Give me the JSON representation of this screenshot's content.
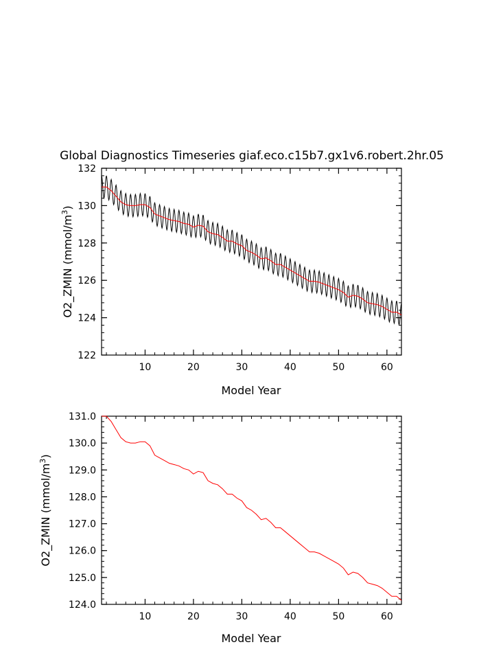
{
  "chart_data": [
    {
      "type": "line",
      "title": "Global Diagnostics Timeseries giaf.eco.c15b7.gx1v6.robert.2hr.05",
      "xlabel": "Model Year",
      "ylabel": "O2_ZMIN (mmol/m",
      "ylabel_sup": "3",
      "ylabel_close": ")",
      "xlim": [
        1,
        63
      ],
      "ylim": [
        122,
        132
      ],
      "xticks": [
        10,
        20,
        30,
        40,
        50,
        60
      ],
      "yticks": [
        122,
        124,
        126,
        128,
        130,
        132
      ],
      "ytick_labels": [
        "122",
        "124",
        "126",
        "128",
        "130",
        "132"
      ],
      "series": [
        {
          "color": "#000000",
          "monthly_amplitude": 0.6,
          "note_seasonal": true
        },
        {
          "color": "#ff0000"
        }
      ],
      "annual": {
        "x": [
          1,
          2,
          3,
          4,
          5,
          6,
          7,
          8,
          9,
          10,
          11,
          12,
          13,
          14,
          15,
          16,
          17,
          18,
          19,
          20,
          21,
          22,
          23,
          24,
          25,
          26,
          27,
          28,
          29,
          30,
          31,
          32,
          33,
          34,
          35,
          36,
          37,
          38,
          39,
          40,
          41,
          42,
          43,
          44,
          45,
          46,
          47,
          48,
          49,
          50,
          51,
          52,
          53,
          54,
          55,
          56,
          57,
          58,
          59,
          60,
          61,
          62,
          63
        ],
        "y": [
          131.0,
          131.0,
          130.8,
          130.5,
          130.2,
          130.05,
          130.0,
          130.0,
          130.05,
          130.05,
          129.9,
          129.55,
          129.45,
          129.35,
          129.25,
          129.2,
          129.15,
          129.05,
          129.0,
          128.85,
          128.95,
          128.9,
          128.6,
          128.5,
          128.45,
          128.3,
          128.1,
          128.1,
          127.95,
          127.85,
          127.6,
          127.5,
          127.35,
          127.15,
          127.2,
          127.05,
          126.85,
          126.85,
          126.7,
          126.55,
          126.4,
          126.25,
          126.1,
          125.95,
          125.95,
          125.9,
          125.8,
          125.7,
          125.6,
          125.5,
          125.35,
          125.1,
          125.2,
          125.15,
          125.0,
          124.8,
          124.75,
          124.7,
          124.6,
          124.45,
          124.3,
          124.3,
          124.15
        ]
      }
    },
    {
      "type": "line",
      "title": "",
      "xlabel": "Model Year",
      "ylabel": "O2_ZMIN (mmol/m",
      "ylabel_sup": "3",
      "ylabel_close": ")",
      "xlim": [
        1,
        63
      ],
      "ylim": [
        124,
        131
      ],
      "xticks": [
        10,
        20,
        30,
        40,
        50,
        60
      ],
      "yticks": [
        124,
        125,
        126,
        127,
        128,
        129,
        130,
        131
      ],
      "ytick_labels": [
        "124.0",
        "125.0",
        "126.0",
        "127.0",
        "128.0",
        "129.0",
        "130.0",
        "131.0"
      ],
      "series": [
        {
          "color": "#ff0000"
        }
      ]
    }
  ]
}
